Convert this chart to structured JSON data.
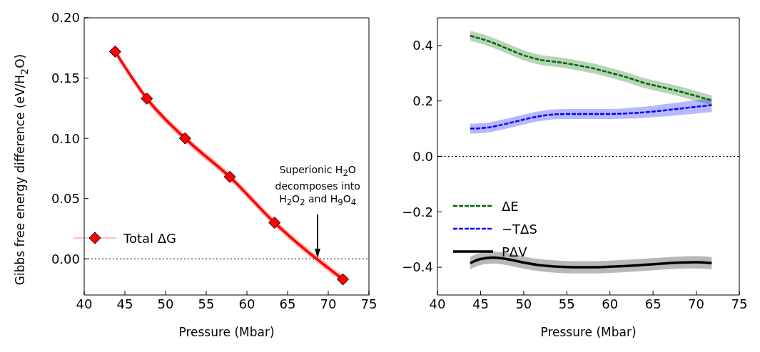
{
  "chart_data": [
    {
      "type": "line",
      "xlabel": "Pressure (Mbar)",
      "ylabel": "Gibbs free energy difference (eV/H$_{2}$O)",
      "xlim": [
        40,
        75
      ],
      "xticks": [
        40,
        45,
        50,
        55,
        60,
        65,
        70,
        75
      ],
      "ylim": [
        -0.03,
        0.2
      ],
      "yticks": [
        {
          "value": 0,
          "label": "0.00"
        },
        {
          "value": 0.05,
          "label": "0.05"
        },
        {
          "value": 0.1,
          "label": "0.10"
        },
        {
          "value": 0.15,
          "label": "0.15"
        },
        {
          "value": 0.2,
          "label": "0.20"
        }
      ],
      "marker": "diamond",
      "legend": "left",
      "grid": false,
      "ref_lines": [
        {
          "axis": "y",
          "value": 0,
          "line_style": "dotted",
          "color": "#000000"
        }
      ],
      "annotations": [
        "Superionic H$_{2}$O decomposes into H$_{2}$O$_{2}$ and H$_{9}$O$_{4}$"
      ],
      "series": [
        {
          "name": "Total ΔG",
          "color": "#ff0000",
          "x": [
            43.8,
            47.7,
            52.4,
            57.9,
            63.4,
            71.8
          ],
          "values": [
            0.172,
            0.133,
            0.1,
            0.068,
            0.03,
            -0.017
          ],
          "lower": [
            0.169,
            0.13,
            0.097,
            0.065,
            0.027,
            -0.02
          ],
          "upper": [
            0.175,
            0.136,
            0.103,
            0.071,
            0.033,
            -0.014
          ]
        }
      ]
    },
    {
      "type": "line",
      "xlabel": "Pressure (Mbar)",
      "xlim": [
        40,
        75
      ],
      "xticks": [
        40,
        45,
        50,
        55,
        60,
        65,
        70,
        75
      ],
      "ylim": [
        -0.5,
        0.5
      ],
      "yticks": [
        {
          "value": -0.4,
          "label": "−0.4"
        },
        {
          "value": -0.2,
          "label": "−0.2"
        },
        {
          "value": 0,
          "label": "0.0"
        },
        {
          "value": 0.2,
          "label": "0.2"
        },
        {
          "value": 0.4,
          "label": "0.4"
        }
      ],
      "marker": "none",
      "legend": "bottom left",
      "grid": false,
      "ref_lines": [
        {
          "axis": "y",
          "value": 0,
          "line_style": "dotted",
          "color": "#000000"
        }
      ],
      "series": [
        {
          "name": "ΔE",
          "color": "#006400",
          "line_style": "dashed",
          "x": [
            43.8,
            46,
            48,
            50,
            52,
            54,
            56,
            58,
            60,
            62,
            64,
            66,
            68,
            70,
            71.8
          ],
          "values": [
            0.435,
            0.415,
            0.39,
            0.365,
            0.348,
            0.34,
            0.33,
            0.318,
            0.302,
            0.285,
            0.265,
            0.25,
            0.235,
            0.218,
            0.202
          ],
          "lower": [
            0.417,
            0.397,
            0.372,
            0.347,
            0.33,
            0.322,
            0.312,
            0.3,
            0.284,
            0.267,
            0.247,
            0.232,
            0.217,
            0.2,
            0.184
          ],
          "upper": [
            0.453,
            0.433,
            0.408,
            0.383,
            0.366,
            0.358,
            0.348,
            0.336,
            0.32,
            0.303,
            0.283,
            0.268,
            0.253,
            0.236,
            0.22
          ]
        },
        {
          "name": "−TΔS",
          "color": "#0000ff",
          "line_style": "dashed",
          "x": [
            43.8,
            46,
            48,
            50,
            52,
            54,
            56,
            58,
            60,
            62,
            64,
            66,
            68,
            70,
            71.8
          ],
          "values": [
            0.1,
            0.105,
            0.118,
            0.133,
            0.146,
            0.152,
            0.153,
            0.153,
            0.153,
            0.155,
            0.159,
            0.165,
            0.172,
            0.179,
            0.185
          ],
          "lower": [
            0.082,
            0.087,
            0.1,
            0.115,
            0.128,
            0.134,
            0.135,
            0.135,
            0.135,
            0.136,
            0.139,
            0.143,
            0.149,
            0.155,
            0.16
          ],
          "upper": [
            0.118,
            0.123,
            0.136,
            0.151,
            0.164,
            0.17,
            0.171,
            0.171,
            0.171,
            0.174,
            0.179,
            0.187,
            0.195,
            0.203,
            0.21
          ]
        },
        {
          "name": "PΔV",
          "color": "#000000",
          "line_style": "solid",
          "x": [
            43.8,
            45,
            46.5,
            48,
            50,
            52,
            54,
            56,
            58,
            60,
            62,
            64,
            66,
            68,
            70,
            71.8
          ],
          "values": [
            -0.385,
            -0.37,
            -0.365,
            -0.37,
            -0.383,
            -0.393,
            -0.398,
            -0.4,
            -0.4,
            -0.398,
            -0.395,
            -0.391,
            -0.387,
            -0.383,
            -0.382,
            -0.385
          ],
          "lower": [
            -0.407,
            -0.392,
            -0.387,
            -0.392,
            -0.405,
            -0.415,
            -0.42,
            -0.422,
            -0.422,
            -0.42,
            -0.417,
            -0.413,
            -0.409,
            -0.405,
            -0.404,
            -0.407
          ],
          "upper": [
            -0.363,
            -0.348,
            -0.343,
            -0.348,
            -0.361,
            -0.371,
            -0.376,
            -0.378,
            -0.378,
            -0.376,
            -0.373,
            -0.369,
            -0.365,
            -0.361,
            -0.36,
            -0.363
          ]
        }
      ]
    }
  ]
}
